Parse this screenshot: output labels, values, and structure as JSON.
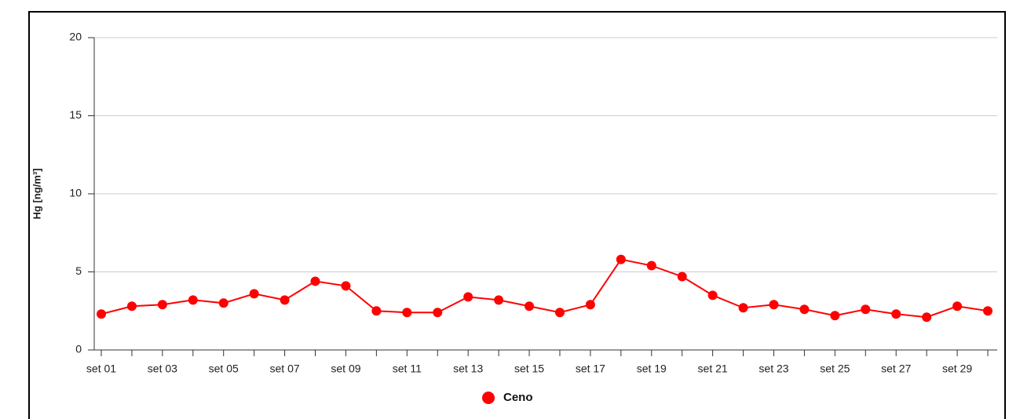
{
  "chart_data": {
    "type": "line",
    "y_label": "Hg [ng/m³]",
    "categories": [
      "set 01",
      null,
      "set 03",
      null,
      "set 05",
      null,
      "set 07",
      null,
      "set 09",
      null,
      "set 11",
      null,
      "set 13",
      null,
      "set 15",
      null,
      "set 17",
      null,
      "set 19",
      null,
      "set 21",
      null,
      "set 23",
      null,
      "set 25",
      null,
      "set 27",
      null,
      "set 29",
      null
    ],
    "series": [
      {
        "name": "Ceno",
        "color": "#ff0000",
        "values": [
          2.3,
          2.8,
          2.9,
          3.2,
          3.0,
          3.6,
          3.2,
          4.4,
          4.1,
          2.5,
          2.4,
          2.4,
          3.4,
          3.2,
          2.8,
          2.4,
          2.9,
          5.8,
          5.4,
          4.7,
          3.5,
          2.7,
          2.9,
          2.6,
          2.2,
          2.6,
          2.3,
          2.1,
          2.8,
          2.5
        ]
      }
    ],
    "ylim": [
      0,
      20
    ],
    "yticks": [
      0,
      5,
      10,
      15,
      20
    ],
    "grid": true
  }
}
